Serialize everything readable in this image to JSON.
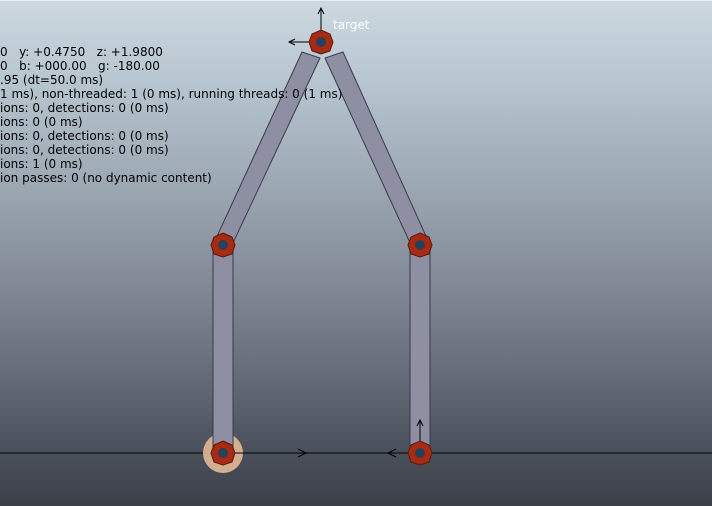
{
  "overlay": {
    "lines": [
      "0   y: +0.4750   z: +1.9800",
      "0   b: +000.00   g: -180.00",
      ".95 (dt=50.0 ms)",
      "1 ms), non-threaded: 1 (0 ms), running threads: 0 (1 ms)",
      "ions: 0, detections: 0 (0 ms)",
      "ions: 0 (0 ms)",
      "ions: 0, detections: 0 (0 ms)",
      "ions: 0, detections: 0 (0 ms)",
      "ions: 1 (0 ms)",
      "ion passes: 0 (no dynamic content)"
    ]
  },
  "scene": {
    "target_label": "target",
    "colors": {
      "link_fill": "#8f8fa4",
      "link_stroke": "#3a3a4a",
      "joint_outer": "#a82a12",
      "joint_inner": "#2a3f5a",
      "base_highlight": "#e2b996",
      "ground_line": "#000000",
      "text_overlay": "#000000",
      "target_label": "#ffffff"
    },
    "icons": [
      "target-dummy-icon",
      "joint-icon",
      "axis-arrow-icon"
    ]
  }
}
